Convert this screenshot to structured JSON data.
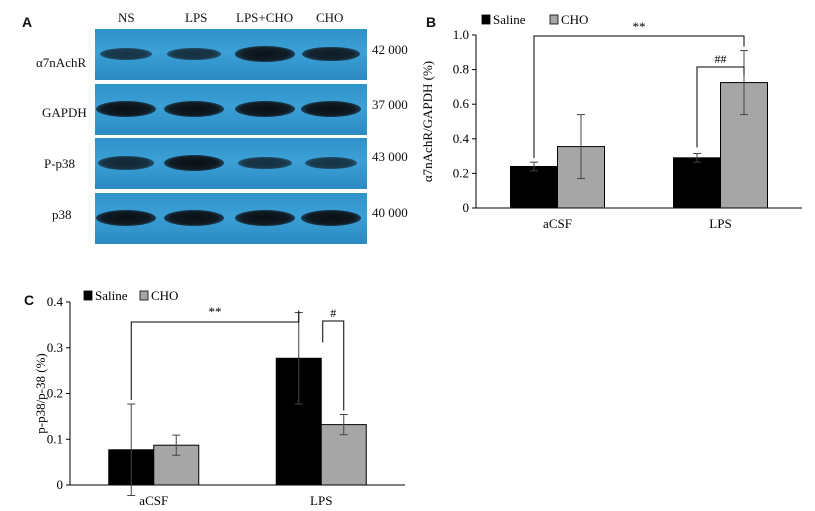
{
  "panels": {
    "a": "A",
    "b": "B",
    "c": "C"
  },
  "blot": {
    "lanes": [
      "NS",
      "LPS",
      "LPS+CHO",
      "CHO"
    ],
    "rows": [
      {
        "label": "α7nAchR",
        "size": "42 000",
        "intensity": [
          0.55,
          0.6,
          0.95,
          0.85
        ]
      },
      {
        "label": "GAPDH",
        "size": "37 000",
        "intensity": [
          1.0,
          1.0,
          1.0,
          1.0
        ]
      },
      {
        "label": "P-p38",
        "size": "43 000",
        "intensity": [
          0.7,
          1.0,
          0.6,
          0.55
        ]
      },
      {
        "label": "p38",
        "size": "40 000",
        "intensity": [
          1.0,
          1.0,
          1.0,
          1.0
        ]
      }
    ]
  },
  "chart_data": [
    {
      "type": "bar",
      "panel": "B",
      "ylabel": "α7nAchR/GAPDH (%)",
      "xlabel": "",
      "ylim": [
        0,
        1.0
      ],
      "yticks": [
        "0",
        "0.2",
        "0.4",
        "0.6",
        "0.8",
        "1.0"
      ],
      "categories": [
        "aCSF",
        "LPS"
      ],
      "legend": "top-left",
      "series": [
        {
          "name": "Saline",
          "color": "#000000",
          "values": [
            0.24,
            0.29
          ],
          "errors": [
            0.025,
            0.025
          ]
        },
        {
          "name": "CHO",
          "color": "#a6a6a6",
          "values": [
            0.355,
            0.725
          ],
          "errors": [
            0.185,
            0.185
          ]
        }
      ],
      "annotations": [
        "**",
        "##"
      ]
    },
    {
      "type": "bar",
      "panel": "C",
      "ylabel": "p-p38/p-38 (%)",
      "xlabel": "",
      "ylim": [
        0,
        0.4
      ],
      "yticks": [
        "0",
        "0.1",
        "0.2",
        "0.3",
        "0.4"
      ],
      "categories": [
        "aCSF",
        "LPS"
      ],
      "legend": "top-left",
      "series": [
        {
          "name": "Saline",
          "color": "#000000",
          "values": [
            0.077,
            0.277
          ],
          "errors": [
            0.1,
            0.1
          ]
        },
        {
          "name": "CHO",
          "color": "#a6a6a6",
          "values": [
            0.087,
            0.132
          ],
          "errors": [
            0.022,
            0.022
          ]
        }
      ],
      "annotations": [
        "**",
        "#"
      ]
    }
  ]
}
